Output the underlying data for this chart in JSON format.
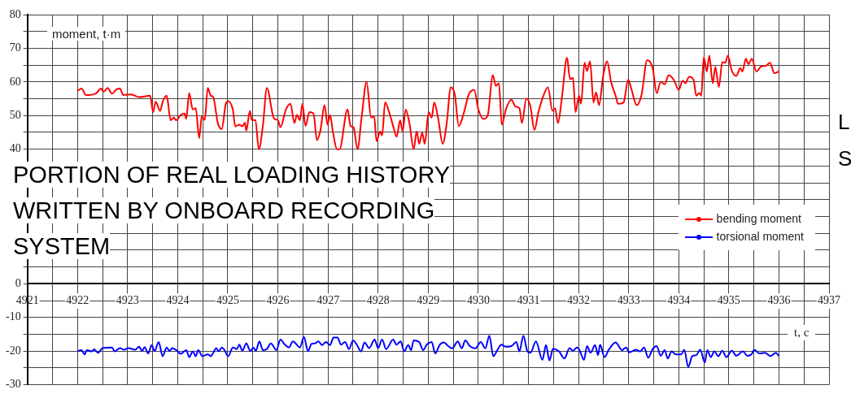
{
  "chart_data": {
    "type": "line",
    "title": "PORTION OF REAL LOADING HISTORY WRITTEN BY ONBOARD RECORDING SYSTEM",
    "xlabel": "t, c",
    "ylabel": "moment, t·m",
    "annotations": [
      "L",
      "S"
    ],
    "xlim": [
      4921,
      4937
    ],
    "xticks": [
      4921,
      {
        "value": 4921.5,
        "label": null
      },
      4922,
      {
        "value": 4922.5,
        "label": null
      },
      4923,
      {
        "value": 4923.5,
        "label": null
      },
      4924,
      {
        "value": 4924.5,
        "label": null
      },
      4925,
      {
        "value": 4925.5,
        "label": null
      },
      4926,
      {
        "value": 4926.5,
        "label": null
      },
      4927,
      {
        "value": 4927.5,
        "label": null
      },
      4928,
      {
        "value": 4928.5,
        "label": null
      },
      4929,
      {
        "value": 4929.5,
        "label": null
      },
      4930,
      {
        "value": 4930.5,
        "label": null
      },
      4931,
      {
        "value": 4931.5,
        "label": null
      },
      4932,
      {
        "value": 4932.5,
        "label": null
      },
      4933,
      {
        "value": 4933.5,
        "label": null
      },
      4934,
      {
        "value": 4934.5,
        "label": null
      },
      4935,
      {
        "value": 4935.5,
        "label": null
      },
      4936,
      {
        "value": 4936.5,
        "label": null
      },
      4937
    ],
    "ylim": [
      -30,
      80
    ],
    "yticks": [
      -30,
      {
        "value": -25,
        "label": null
      },
      -20,
      {
        "value": -15,
        "label": null
      },
      -10,
      {
        "value": -5,
        "label": null
      },
      0,
      {
        "value": 5,
        "label": null
      },
      {
        "value": 10,
        "label": null
      },
      {
        "value": 15,
        "label": null
      },
      {
        "value": 20,
        "label": null
      },
      {
        "value": 25,
        "label": null
      },
      {
        "value": 30,
        "label": null
      },
      {
        "value": 35,
        "label": null
      },
      40,
      {
        "value": 45,
        "label": null
      },
      50,
      {
        "value": 55,
        "label": null
      },
      60,
      {
        "value": 65,
        "label": null
      },
      70,
      {
        "value": 75,
        "label": null
      },
      80
    ],
    "grid": true,
    "legend": "right",
    "series": [
      {
        "name": "bending moment",
        "color": "#ff0000",
        "x": [
          4922.0,
          4922.08,
          4922.17,
          4922.36,
          4922.47,
          4922.52,
          4922.6,
          4922.69,
          4922.77,
          4922.85,
          4922.91,
          4923.07,
          4923.23,
          4923.45,
          4923.51,
          4923.56,
          4923.65,
          4923.7,
          4923.78,
          4923.86,
          4923.92,
          4923.97,
          4924.06,
          4924.14,
          4924.17,
          4924.23,
          4924.3,
          4924.36,
          4924.43,
          4924.48,
          4924.54,
          4924.6,
          4924.66,
          4924.71,
          4924.8,
          4924.88,
          4924.96,
          4925.01,
          4925.1,
          4925.15,
          4925.23,
          4925.29,
          4925.34,
          4925.37,
          4925.44,
          4925.48,
          4925.55,
          4925.62,
          4925.7,
          4925.78,
          4925.92,
          4926.0,
          4926.05,
          4926.16,
          4926.25,
          4926.33,
          4926.38,
          4926.44,
          4926.49,
          4926.55,
          4926.63,
          4926.71,
          4926.78,
          4926.85,
          4926.93,
          4926.99,
          4927.04,
          4927.1,
          4927.18,
          4927.23,
          4927.39,
          4927.45,
          4927.51,
          4927.59,
          4927.67,
          4927.77,
          4927.86,
          4927.92,
          4927.97,
          4928.04,
          4928.08,
          4928.14,
          4928.22,
          4928.3,
          4928.37,
          4928.44,
          4928.49,
          4928.55,
          4928.63,
          4928.71,
          4928.77,
          4928.82,
          4928.88,
          4928.93,
          4929.01,
          4929.07,
          4929.12,
          4929.2,
          4929.29,
          4929.37,
          4929.45,
          4929.53,
          4929.61,
          4929.7,
          4929.81,
          4929.92,
          4930.0,
          4930.11,
          4930.19,
          4930.29,
          4930.35,
          4930.41,
          4930.47,
          4930.55,
          4930.66,
          4930.74,
          4930.82,
          4930.87,
          4930.96,
          4931.04,
          4931.12,
          4931.2,
          4931.31,
          4931.39,
          4931.48,
          4931.53,
          4931.59,
          4931.67,
          4931.77,
          4931.83,
          4931.89,
          4931.94,
          4932.01,
          4932.05,
          4932.12,
          4932.17,
          4932.23,
          4932.3,
          4932.35,
          4932.41,
          4932.49,
          4932.57,
          4932.65,
          4932.74,
          4932.79,
          4932.9,
          4932.99,
          4933.06,
          4933.16,
          4933.26,
          4933.37,
          4933.48,
          4933.56,
          4933.64,
          4933.72,
          4933.8,
          4933.91,
          4934.0,
          4934.08,
          4934.13,
          4934.21,
          4934.3,
          4934.35,
          4934.41,
          4934.45,
          4934.5,
          4934.56,
          4934.61,
          4934.68,
          4934.73,
          4934.8,
          4934.87,
          4934.93,
          4934.98,
          4935.06,
          4935.15,
          4935.23,
          4935.27,
          4935.34,
          4935.39,
          4935.46,
          4935.55,
          4935.64,
          4935.75,
          4935.82,
          4935.91,
          4936.0
        ],
        "values": [
          57.3,
          58,
          56.1,
          56.5,
          58,
          57.1,
          58.2,
          56.5,
          57.7,
          58,
          56.1,
          56.3,
          55.5,
          55.9,
          51,
          54.1,
          51.4,
          54.1,
          55.9,
          48.6,
          49.4,
          48.6,
          50.2,
          50.6,
          49,
          56.7,
          51.8,
          52.2,
          43.3,
          49.8,
          48.7,
          58.2,
          55.9,
          55.5,
          47.8,
          46,
          53.5,
          54.3,
          51.8,
          46.8,
          47.3,
          46.8,
          47.9,
          45.5,
          51.4,
          48.7,
          48.6,
          40,
          46.9,
          58.2,
          49.2,
          48.6,
          46.5,
          51.8,
          53.5,
          47.8,
          50.2,
          48.6,
          53.5,
          46.9,
          51,
          50.6,
          42.7,
          45.7,
          53.1,
          47.3,
          50.2,
          44.9,
          40,
          40,
          51.8,
          46.9,
          46.5,
          40,
          49.4,
          60,
          49.4,
          49.8,
          42.4,
          45.3,
          44.1,
          53.9,
          51,
          46.9,
          43.7,
          48.6,
          45.3,
          51.8,
          47.3,
          40,
          45.3,
          41.6,
          44.9,
          41.6,
          51,
          49.4,
          53.9,
          49,
          41.6,
          47.8,
          58.4,
          56.3,
          46.9,
          50.2,
          56.3,
          57.6,
          51.8,
          49,
          50.2,
          62,
          58.8,
          59.6,
          47.3,
          51.8,
          54.7,
          52.7,
          52.2,
          47.8,
          55.1,
          52.7,
          45.7,
          51,
          56.3,
          58.4,
          51.4,
          52.2,
          47.8,
          55.5,
          67.2,
          60.8,
          61.2,
          51,
          55.9,
          53.5,
          65.7,
          63.3,
          66.1,
          53.9,
          56.9,
          53.1,
          61.6,
          66.1,
          60,
          55.9,
          53.5,
          53.9,
          60.7,
          57.6,
          53.1,
          56.3,
          66.5,
          64.1,
          56.7,
          60,
          59.3,
          62,
          60.4,
          57.6,
          60.4,
          59.6,
          61.5,
          60.4,
          55.9,
          56.7,
          55.9,
          67.3,
          63.1,
          67.8,
          59.6,
          64.5,
          58.5,
          65.9,
          65.7,
          67.8,
          63.3,
          61.8,
          64.1,
          63.1,
          66.9,
          65.3,
          66.9,
          63.1,
          64.5,
          64.9,
          65.7,
          62.6,
          63.1
        ]
      },
      {
        "name": "torsional moment",
        "color": "#0000ff",
        "x": [
          4922.0,
          4922.08,
          4922.14,
          4922.19,
          4922.28,
          4922.33,
          4922.41,
          4922.5,
          4922.69,
          4922.74,
          4922.85,
          4922.93,
          4923.02,
          4923.15,
          4923.23,
          4923.29,
          4923.34,
          4923.41,
          4923.48,
          4923.54,
          4923.62,
          4923.7,
          4923.78,
          4923.84,
          4923.89,
          4923.97,
          4924.06,
          4924.17,
          4924.23,
          4924.3,
          4924.36,
          4924.41,
          4924.49,
          4924.6,
          4924.66,
          4924.71,
          4924.77,
          4924.82,
          4924.88,
          4924.93,
          4925.01,
          4925.1,
          4925.18,
          4925.23,
          4925.29,
          4925.37,
          4925.45,
          4925.51,
          4925.56,
          4925.63,
          4925.7,
          4925.78,
          4925.86,
          4925.97,
          4926.05,
          4926.14,
          4926.22,
          4926.3,
          4926.44,
          4926.52,
          4926.6,
          4926.67,
          4926.74,
          4926.81,
          4926.88,
          4926.96,
          4927.04,
          4927.11,
          4927.19,
          4927.26,
          4927.34,
          4927.42,
          4927.5,
          4927.59,
          4927.66,
          4927.73,
          4927.82,
          4927.93,
          4928.0,
          4928.08,
          4928.16,
          4928.3,
          4928.37,
          4928.45,
          4928.52,
          4928.6,
          4928.66,
          4928.71,
          4928.82,
          4928.9,
          4928.97,
          4929.07,
          4929.14,
          4929.23,
          4929.31,
          4929.4,
          4929.48,
          4929.59,
          4929.67,
          4929.74,
          4929.83,
          4929.94,
          4930.05,
          4930.14,
          4930.22,
          4930.3,
          4930.38,
          4930.46,
          4930.55,
          4930.66,
          4930.76,
          4930.82,
          4930.9,
          4930.98,
          4931.04,
          4931.15,
          4931.28,
          4931.35,
          4931.42,
          4931.49,
          4931.61,
          4931.72,
          4931.82,
          4931.89,
          4931.97,
          4932.02,
          4932.11,
          4932.17,
          4932.24,
          4932.33,
          4932.39,
          4932.43,
          4932.52,
          4932.6,
          4932.74,
          4932.87,
          4932.95,
          4933.01,
          4933.15,
          4933.23,
          4933.31,
          4933.39,
          4933.48,
          4933.56,
          4933.64,
          4933.72,
          4933.78,
          4933.86,
          4933.94,
          4934.05,
          4934.11,
          4934.19,
          4934.27,
          4934.35,
          4934.43,
          4934.52,
          4934.57,
          4934.64,
          4934.71,
          4934.79,
          4934.87,
          4934.95,
          4935.06,
          4935.15,
          4935.28,
          4935.37,
          4935.45,
          4935.51,
          4935.61,
          4935.72,
          4935.83,
          4935.94,
          4936.0
        ],
        "values": [
          -20,
          -19.7,
          -21,
          -19.7,
          -20.1,
          -19.5,
          -20.5,
          -19.1,
          -18.9,
          -20.1,
          -19.1,
          -19.6,
          -19.1,
          -19.6,
          -18.7,
          -20,
          -18.8,
          -20.7,
          -18.2,
          -20,
          -17.3,
          -21.5,
          -18.9,
          -20,
          -19.1,
          -19.7,
          -20.8,
          -19.7,
          -21.8,
          -20.1,
          -21.5,
          -19.7,
          -21.5,
          -21,
          -21.5,
          -20.5,
          -19.1,
          -20.1,
          -18.9,
          -19.6,
          -21.5,
          -18.9,
          -19.4,
          -18.1,
          -19.9,
          -17.7,
          -20,
          -18.9,
          -19.9,
          -17.1,
          -19.7,
          -19.4,
          -17.7,
          -19.7,
          -16.6,
          -18.1,
          -18.9,
          -17.1,
          -18.9,
          -15.8,
          -20,
          -17.9,
          -17.7,
          -17.1,
          -18.2,
          -17.3,
          -18.2,
          -16,
          -16,
          -18.1,
          -17.3,
          -19.4,
          -16.8,
          -18.5,
          -20.1,
          -17.4,
          -19.1,
          -16.6,
          -19.1,
          -16.6,
          -19.4,
          -16.6,
          -18.1,
          -17.1,
          -20.1,
          -18.2,
          -19.7,
          -16.8,
          -17.3,
          -19.7,
          -18.1,
          -17.3,
          -20.7,
          -18.1,
          -17.4,
          -18.5,
          -19.2,
          -17.1,
          -19.2,
          -16.8,
          -18.5,
          -19.2,
          -17.3,
          -19.2,
          -15.4,
          -21.5,
          -19.7,
          -18.1,
          -18.7,
          -18.5,
          -17.3,
          -20.1,
          -15.4,
          -20.1,
          -20.5,
          -17.1,
          -22.6,
          -18.2,
          -22.8,
          -19.3,
          -20.1,
          -22.2,
          -19.1,
          -19.9,
          -18.9,
          -19.7,
          -22.6,
          -18.5,
          -20.5,
          -18.2,
          -21.2,
          -18.1,
          -21.8,
          -19.7,
          -17.4,
          -19.7,
          -18.9,
          -20.4,
          -19.6,
          -20.1,
          -18.9,
          -22,
          -19.4,
          -18.5,
          -21.4,
          -19.7,
          -22.2,
          -20.1,
          -21,
          -21,
          -19.6,
          -24.7,
          -21.5,
          -21.2,
          -19.6,
          -23.4,
          -19.7,
          -21.8,
          -20.1,
          -21.5,
          -19.9,
          -21.8,
          -19.9,
          -21.4,
          -20.1,
          -21.4,
          -21,
          -19.6,
          -20.7,
          -20.5,
          -21.5,
          -20.5,
          -21.5
        ]
      }
    ]
  }
}
